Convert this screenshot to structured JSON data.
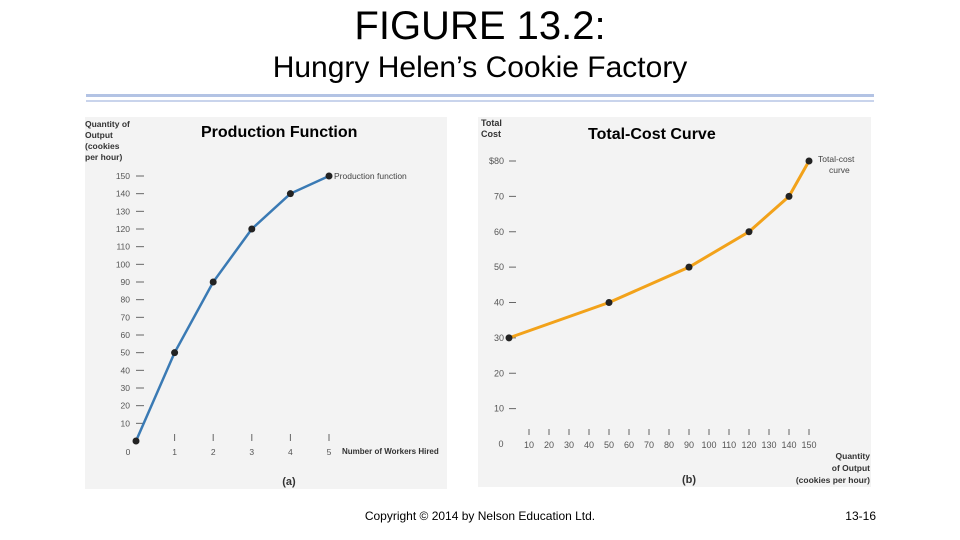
{
  "slide": {
    "title": "FIGURE 13.2:",
    "subtitle": "Hungry Helen’s Cookie Factory",
    "copyright": "Copyright © 2014 by Nelson Education Ltd.",
    "page_number": "13-16"
  },
  "colors": {
    "production_line": "#3a7ab4",
    "cost_line": "#f2a21a",
    "point": "#222222",
    "panel_bg": "#f3f3f3",
    "rule": "#b3c3e4"
  },
  "chart_data": [
    {
      "type": "line",
      "title": "Production Function",
      "panel_label": "(a)",
      "xlabel": "Number of Workers Hired",
      "ylabel_lines": [
        "Quantity of",
        "Output",
        "(cookies",
        "per hour)"
      ],
      "xlim": [
        0,
        5
      ],
      "ylim": [
        0,
        150
      ],
      "xticks": [
        0,
        1,
        2,
        3,
        4,
        5
      ],
      "yticks": [
        10,
        20,
        30,
        40,
        50,
        60,
        70,
        80,
        90,
        100,
        110,
        120,
        130,
        140,
        150
      ],
      "series": [
        {
          "name": "Production function",
          "x": [
            0,
            1,
            2,
            3,
            4,
            5
          ],
          "y": [
            0,
            50,
            90,
            120,
            140,
            150
          ]
        }
      ],
      "grid": false
    },
    {
      "type": "line",
      "title": "Total-Cost Curve",
      "panel_label": "(b)",
      "xlabel_lines": [
        "Quantity",
        "of Output",
        "(cookies per hour)"
      ],
      "ylabel_lines": [
        "Total",
        "Cost"
      ],
      "xlim": [
        0,
        150
      ],
      "ylim": [
        0,
        80
      ],
      "xticks": [
        10,
        20,
        30,
        40,
        50,
        60,
        70,
        80,
        90,
        100,
        110,
        120,
        130,
        140,
        150
      ],
      "yticks": [
        10,
        20,
        30,
        40,
        50,
        60,
        70,
        80
      ],
      "ytick_labels": [
        "10",
        "20",
        "30",
        "40",
        "50",
        "60",
        "70",
        "$80"
      ],
      "origin_label": "0",
      "series": [
        {
          "name": "Total-cost curve",
          "x": [
            0,
            50,
            90,
            120,
            140,
            150
          ],
          "y": [
            30,
            40,
            50,
            60,
            70,
            80
          ]
        }
      ],
      "grid": false
    }
  ]
}
